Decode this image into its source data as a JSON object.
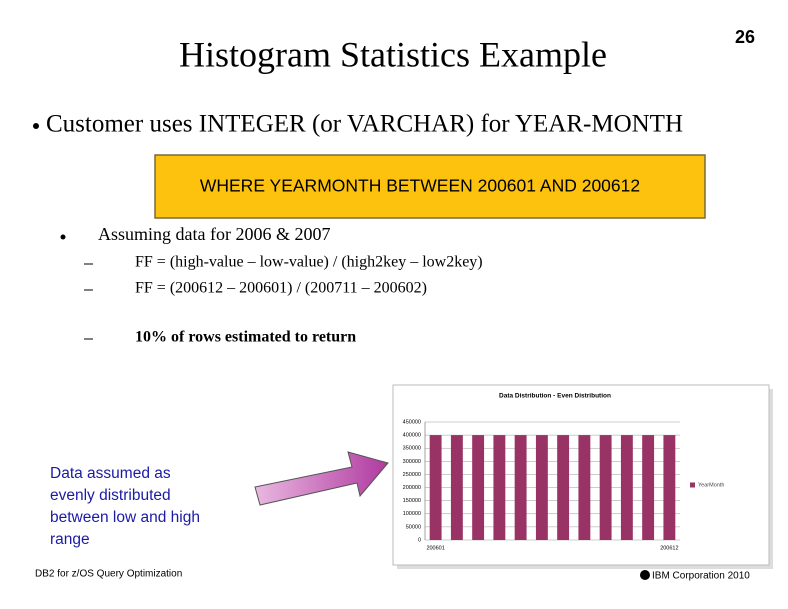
{
  "slide": {
    "title": "Histogram Statistics Example",
    "page_number": "26",
    "main_bullet": "Customer uses INTEGER (or VARCHAR) for YEAR-MONTH",
    "query_box": "WHERE YEARMONTH BETWEEN 200601 AND 200612",
    "sub_bullet": "Assuming data for 2006 & 2007",
    "dash_items": [
      "FF = (high-value – low-value) / (high2key – low2key)",
      "FF = (200612 – 200601) / (200711 – 200602)",
      "10% of rows estimated to return"
    ],
    "callout": [
      "Data assumed as",
      "evenly distributed",
      "between low and high",
      "range"
    ],
    "footer_left": "DB2 for z/OS Query Optimization",
    "footer_right": "IBM Corporation 2010"
  },
  "chart_data": {
    "type": "bar",
    "title": "Data Distribution - Even Distribution",
    "categories": [
      "200601",
      null,
      null,
      null,
      null,
      null,
      null,
      null,
      null,
      null,
      null,
      "200612"
    ],
    "series": [
      {
        "name": "YearMonth",
        "color": "#993366",
        "values": [
          400000,
          400000,
          400000,
          400000,
          400000,
          400000,
          400000,
          400000,
          400000,
          400000,
          400000,
          400000
        ]
      }
    ],
    "ylim": [
      0,
      450000
    ],
    "yticks": [
      0,
      50000,
      100000,
      150000,
      200000,
      250000,
      300000,
      350000,
      400000,
      450000
    ],
    "grid": true,
    "legend": "right"
  }
}
